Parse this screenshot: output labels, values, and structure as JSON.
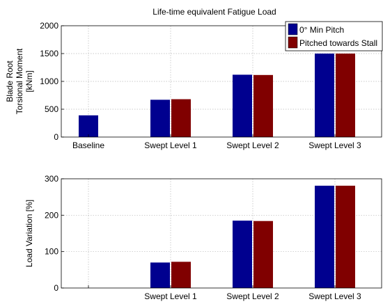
{
  "chart_data": [
    {
      "type": "bar",
      "title": "Life-time equivalent Fatigue Load",
      "ylabel_lines": [
        "Blade Root",
        "Torsional Moment",
        "[kNm]"
      ],
      "categories": [
        "Baseline",
        "Swept Level 1",
        "Swept Level 2",
        "Swept Level 3"
      ],
      "yticks": [
        0,
        500,
        1000,
        1500,
        2000
      ],
      "ylim": [
        0,
        2000
      ],
      "grid": true,
      "legend_position": "top-right",
      "series": [
        {
          "name": "0° Min Pitch",
          "color": "#00008f",
          "values": [
            390,
            670,
            1120,
            1500
          ]
        },
        {
          "name": "Pitched towards Stall",
          "color": "#800000",
          "values": [
            null,
            680,
            1115,
            1500
          ]
        }
      ]
    },
    {
      "type": "bar",
      "ylabel": "Load Variation [%]",
      "categories": [
        "",
        "Swept Level 1",
        "Swept Level 2",
        "Swept Level 3"
      ],
      "yticks": [
        0,
        100,
        200,
        300
      ],
      "ylim": [
        0,
        300
      ],
      "grid": true,
      "series": [
        {
          "name": "0° Min Pitch",
          "color": "#00008f",
          "values": [
            null,
            70,
            185,
            281
          ]
        },
        {
          "name": "Pitched towards Stall",
          "color": "#800000",
          "values": [
            null,
            72,
            184,
            281
          ]
        }
      ]
    }
  ]
}
